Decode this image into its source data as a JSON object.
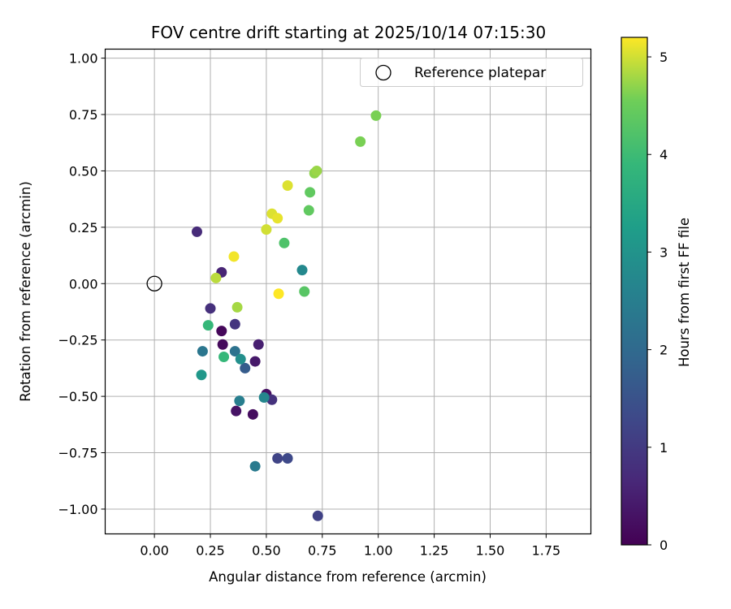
{
  "chart_data": {
    "type": "scatter",
    "title": "FOV centre drift starting at 2025/10/14 07:15:30",
    "xlabel": "Angular distance from reference (arcmin)",
    "ylabel": "Rotation from reference (arcmin)",
    "xlim": [
      -0.22,
      1.95
    ],
    "ylim": [
      -1.11,
      1.04
    ],
    "x_ticks": [
      0.0,
      0.25,
      0.5,
      0.75,
      1.0,
      1.25,
      1.5,
      1.75
    ],
    "x_tick_labels": [
      "0.00",
      "0.25",
      "0.50",
      "0.75",
      "1.00",
      "1.25",
      "1.50",
      "1.75"
    ],
    "y_ticks": [
      1.0,
      0.75,
      0.5,
      0.25,
      0.0,
      -0.25,
      -0.5,
      -0.75,
      -1.0
    ],
    "y_tick_labels": [
      "1.00",
      "0.75",
      "0.50",
      "0.25",
      "0.00",
      "−0.25",
      "−0.50",
      "−0.75",
      "−1.00"
    ],
    "grid": true,
    "legend": {
      "position": "top-right",
      "entries": [
        "Reference platepar"
      ]
    },
    "reference_point": {
      "x": 0.0,
      "y": 0.0,
      "marker": "open-circle"
    },
    "colorbar": {
      "label": "Hours from first FF file",
      "min": 0,
      "max": 5.2,
      "ticks": [
        0,
        1,
        2,
        3,
        4,
        5
      ],
      "tick_labels": [
        "0",
        "1",
        "2",
        "3",
        "4",
        "5"
      ],
      "colormap": "viridis"
    },
    "series": [
      {
        "name": "FOV centre drift",
        "points": [
          {
            "x": 0.3,
            "y": -0.21,
            "h": 0.1
          },
          {
            "x": 0.305,
            "y": -0.27,
            "h": 0.15
          },
          {
            "x": 0.44,
            "y": -0.58,
            "h": 0.2
          },
          {
            "x": 0.5,
            "y": -0.49,
            "h": 0.25
          },
          {
            "x": 0.365,
            "y": -0.565,
            "h": 0.3
          },
          {
            "x": 0.45,
            "y": -0.345,
            "h": 0.4
          },
          {
            "x": 0.465,
            "y": -0.27,
            "h": 0.5
          },
          {
            "x": 0.3,
            "y": 0.05,
            "h": 0.6
          },
          {
            "x": 0.19,
            "y": 0.23,
            "h": 0.7
          },
          {
            "x": 0.25,
            "y": -0.11,
            "h": 0.8
          },
          {
            "x": 0.525,
            "y": -0.515,
            "h": 0.85
          },
          {
            "x": 0.36,
            "y": -0.18,
            "h": 0.9
          },
          {
            "x": 0.73,
            "y": -1.03,
            "h": 1.15
          },
          {
            "x": 0.55,
            "y": -0.775,
            "h": 1.2
          },
          {
            "x": 0.595,
            "y": -0.775,
            "h": 1.3
          },
          {
            "x": 0.405,
            "y": -0.375,
            "h": 1.7
          },
          {
            "x": 0.36,
            "y": -0.3,
            "h": 2.2
          },
          {
            "x": 0.215,
            "y": -0.3,
            "h": 2.3
          },
          {
            "x": 0.45,
            "y": -0.81,
            "h": 2.4
          },
          {
            "x": 0.38,
            "y": -0.52,
            "h": 2.5
          },
          {
            "x": 0.49,
            "y": -0.505,
            "h": 2.7
          },
          {
            "x": 0.66,
            "y": 0.06,
            "h": 2.75
          },
          {
            "x": 0.385,
            "y": -0.335,
            "h": 2.9
          },
          {
            "x": 0.21,
            "y": -0.405,
            "h": 3.1
          },
          {
            "x": 0.31,
            "y": -0.325,
            "h": 3.9
          },
          {
            "x": 0.24,
            "y": -0.185,
            "h": 3.9
          },
          {
            "x": 0.58,
            "y": 0.18,
            "h": 4.2
          },
          {
            "x": 0.67,
            "y": -0.035,
            "h": 4.3
          },
          {
            "x": 0.69,
            "y": 0.325,
            "h": 4.4
          },
          {
            "x": 0.695,
            "y": 0.405,
            "h": 4.4
          },
          {
            "x": 0.92,
            "y": 0.63,
            "h": 4.6
          },
          {
            "x": 0.99,
            "y": 0.745,
            "h": 4.6
          },
          {
            "x": 0.715,
            "y": 0.49,
            "h": 4.7
          },
          {
            "x": 0.725,
            "y": 0.5,
            "h": 4.75
          },
          {
            "x": 0.37,
            "y": -0.105,
            "h": 4.8
          },
          {
            "x": 0.275,
            "y": 0.025,
            "h": 4.9
          },
          {
            "x": 0.5,
            "y": 0.24,
            "h": 5.0
          },
          {
            "x": 0.595,
            "y": 0.435,
            "h": 5.05
          },
          {
            "x": 0.525,
            "y": 0.31,
            "h": 5.05
          },
          {
            "x": 0.55,
            "y": 0.29,
            "h": 5.1
          },
          {
            "x": 0.355,
            "y": 0.12,
            "h": 5.15
          },
          {
            "x": 0.555,
            "y": -0.045,
            "h": 5.2
          }
        ]
      }
    ]
  }
}
